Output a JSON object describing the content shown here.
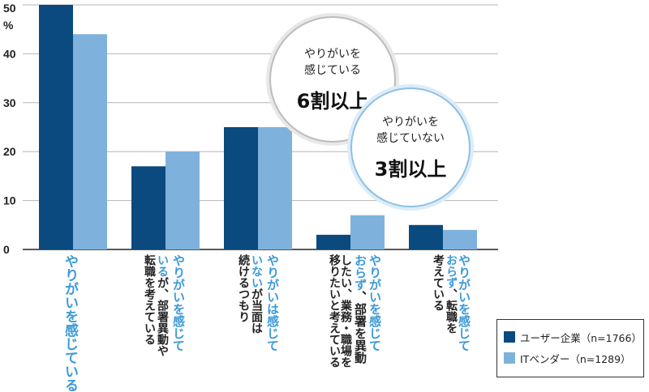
{
  "chart_data": {
    "type": "bar",
    "unit": "%",
    "ylim": [
      0,
      50
    ],
    "yticks": [
      "0",
      "10",
      "20",
      "30",
      "40",
      "50"
    ],
    "grid": true,
    "categories": [
      {
        "segments": [
          {
            "text": "やりがいを感じている",
            "hl": true
          }
        ]
      },
      {
        "segments": [
          {
            "text": "やりがいを感じて",
            "hl": true
          },
          {
            "text": "い",
            "hl": true
          },
          {
            "text": "るが、部署異動や転職を考えている",
            "hl": false
          }
        ]
      },
      {
        "segments": [
          {
            "text": "やりがいは感じて",
            "hl": true
          },
          {
            "text": "いない",
            "hl": true
          },
          {
            "text": "が当面は続けるつもり",
            "hl": false
          }
        ]
      },
      {
        "segments": [
          {
            "text": "やりがいを感じて",
            "hl": true
          },
          {
            "text": "おらず",
            "hl": true
          },
          {
            "text": "、部署を異動したい、業務・職場を移りたいと考えている",
            "hl": false
          }
        ]
      },
      {
        "segments": [
          {
            "text": "やりがいを感じて",
            "hl": true
          },
          {
            "text": "おらず",
            "hl": true
          },
          {
            "text": "、転職を考えている",
            "hl": false
          }
        ]
      }
    ],
    "category_columns": [
      [
        {
          "t": "やりがいを感じている",
          "hl": true
        }
      ],
      [
        {
          "t": "転職を考えている",
          "hl": false
        }
      ],
      [
        {
          "t": "いるが、部署異動や",
          "hl": true,
          "split": 2
        }
      ],
      [
        {
          "t": "やりがいを感じて",
          "hl": true
        }
      ],
      [
        {
          "t": "続けるつもり",
          "hl": false
        }
      ],
      [
        {
          "t": "いないが当面は",
          "hl": true,
          "split": 3
        }
      ],
      [
        {
          "t": "やりがいは感じて",
          "hl": true
        }
      ],
      [
        {
          "t": "移りたいと考えている",
          "hl": false
        }
      ],
      [
        {
          "t": "したい、業務・職場を",
          "hl": false
        }
      ],
      [
        {
          "t": "おらず、部署を異動",
          "hl": true,
          "split": 3
        }
      ],
      [
        {
          "t": "やりがいを感じて",
          "hl": true
        }
      ],
      [
        {
          "t": "考えている",
          "hl": false
        }
      ],
      [
        {
          "t": "おらず、転職を",
          "hl": true,
          "split": 3
        }
      ],
      [
        {
          "t": "やりがいを感じて",
          "hl": true
        }
      ]
    ],
    "series": [
      {
        "name": "ユーザー企業（n=1766）",
        "color": "#0a4a7e",
        "values": [
          50,
          17,
          25,
          3,
          5
        ]
      },
      {
        "name": "ITベンダー（n=1289）",
        "color": "#7eb2dc",
        "values": [
          44,
          20,
          25,
          7,
          4
        ]
      }
    ]
  },
  "annotations": [
    {
      "lines": [
        "やりがいを",
        "感じている"
      ],
      "big": "6割以上"
    },
    {
      "lines": [
        "やりがいを",
        "感じていない"
      ],
      "big": "3割以上"
    }
  ]
}
